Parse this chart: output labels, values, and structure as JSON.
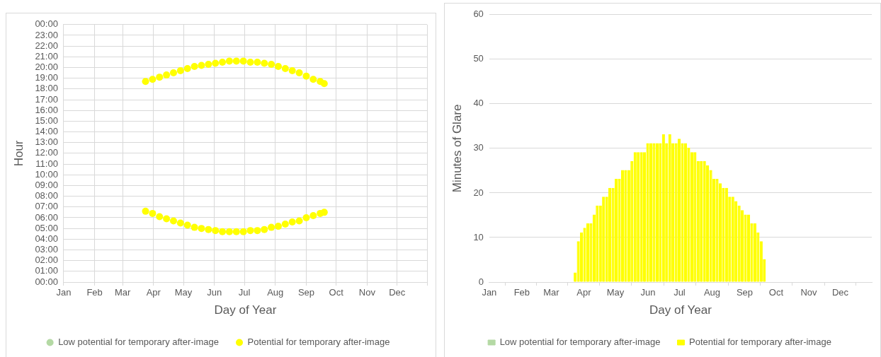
{
  "chart_data": [
    {
      "type": "scatter",
      "xlabel": "Day of Year",
      "ylabel": "Hour",
      "marker": "circle",
      "grid": true,
      "legend": "bottom",
      "xlim": [
        "--01-01",
        "--12-31"
      ],
      "xticks": [
        {
          "value": "--01-01",
          "label": "Jan"
        },
        {
          "value": "--02-01",
          "label": "Feb"
        },
        {
          "value": "--03-01",
          "label": "Mar"
        },
        {
          "value": "--04-01",
          "label": "Apr"
        },
        {
          "value": "--05-01",
          "label": "May"
        },
        {
          "value": "--06-01",
          "label": "Jun"
        },
        {
          "value": "--07-01",
          "label": "Jul"
        },
        {
          "value": "--08-01",
          "label": "Aug"
        },
        {
          "value": "--09-01",
          "label": "Sep"
        },
        {
          "value": "--10-01",
          "label": "Oct"
        },
        {
          "value": "--11-01",
          "label": "Nov"
        },
        {
          "value": "--12-01",
          "label": "Dec"
        },
        {
          "value": "--12-31",
          "label": null
        }
      ],
      "ylim": [
        0,
        24
      ],
      "yticks": [
        {
          "value": 0,
          "label": "00:00"
        },
        {
          "value": 1,
          "label": "01:00"
        },
        {
          "value": 2,
          "label": "02:00"
        },
        {
          "value": 3,
          "label": "03:00"
        },
        {
          "value": 4,
          "label": "04:00"
        },
        {
          "value": 5,
          "label": "05:00"
        },
        {
          "value": 6,
          "label": "06:00"
        },
        {
          "value": 7,
          "label": "07:00"
        },
        {
          "value": 8,
          "label": "08:00"
        },
        {
          "value": 9,
          "label": "09:00"
        },
        {
          "value": 10,
          "label": "10:00"
        },
        {
          "value": 11,
          "label": "11:00"
        },
        {
          "value": 12,
          "label": "12:00"
        },
        {
          "value": 13,
          "label": "13:00"
        },
        {
          "value": 14,
          "label": "14:00"
        },
        {
          "value": 15,
          "label": "15:00"
        },
        {
          "value": 16,
          "label": "16:00"
        },
        {
          "value": 17,
          "label": "17:00"
        },
        {
          "value": 18,
          "label": "18:00"
        },
        {
          "value": 19,
          "label": "19:00"
        },
        {
          "value": 20,
          "label": "20:00"
        },
        {
          "value": 21,
          "label": "21:00"
        },
        {
          "value": 22,
          "label": "22:00"
        },
        {
          "value": 23,
          "label": "23:00"
        },
        {
          "value": 24,
          "label": "00:00"
        }
      ],
      "series": [
        {
          "name": "Low potential for temporary after-image",
          "color": "#b4d9a4"
        },
        {
          "name": "Potential for temporary after-image",
          "color": "#ffff00",
          "x": [
            "--03-24",
            "--03-31",
            "--04-07",
            "--04-14",
            "--04-21",
            "--04-28",
            "--05-05",
            "--05-12",
            "--05-19",
            "--05-26",
            "--06-02",
            "--06-09",
            "--06-16",
            "--06-23",
            "--06-30",
            "--07-07",
            "--07-14",
            "--07-21",
            "--07-28",
            "--08-04",
            "--08-11",
            "--08-18",
            "--08-25",
            "--09-01",
            "--09-08",
            "--09-15",
            "--09-19",
            "--03-24",
            "--03-31",
            "--04-07",
            "--04-14",
            "--04-21",
            "--04-28",
            "--05-05",
            "--05-12",
            "--05-19",
            "--05-26",
            "--06-02",
            "--06-09",
            "--06-16",
            "--06-23",
            "--06-30",
            "--07-07",
            "--07-14",
            "--07-21",
            "--07-28",
            "--08-04",
            "--08-11",
            "--08-18",
            "--08-25",
            "--09-01",
            "--09-08",
            "--09-15",
            "--09-19"
          ],
          "values": [
            6.6,
            6.4,
            6.1,
            5.9,
            5.7,
            5.5,
            5.3,
            5.1,
            5.0,
            4.9,
            4.8,
            4.7,
            4.7,
            4.7,
            4.7,
            4.8,
            4.8,
            4.9,
            5.1,
            5.2,
            5.4,
            5.6,
            5.7,
            6.0,
            6.2,
            6.4,
            6.5,
            18.7,
            18.9,
            19.1,
            19.3,
            19.5,
            19.7,
            19.9,
            20.1,
            20.2,
            20.3,
            20.4,
            20.5,
            20.6,
            20.6,
            20.6,
            20.5,
            20.5,
            20.4,
            20.3,
            20.1,
            19.9,
            19.7,
            19.5,
            19.2,
            18.9,
            18.7,
            18.5
          ]
        }
      ]
    },
    {
      "type": "bar",
      "xlabel": "Day of Year",
      "ylabel": "Minutes of Glare",
      "grid": "y",
      "legend": "bottom",
      "xlim": [
        "--01-01",
        "--12-31"
      ],
      "xticks": [
        {
          "value": "--01-01",
          "label": "Jan"
        },
        {
          "value": "--02-01",
          "label": "Feb"
        },
        {
          "value": "--03-01",
          "label": "Mar"
        },
        {
          "value": "--04-01",
          "label": "Apr"
        },
        {
          "value": "--05-01",
          "label": "May"
        },
        {
          "value": "--06-01",
          "label": "Jun"
        },
        {
          "value": "--07-01",
          "label": "Jul"
        },
        {
          "value": "--08-01",
          "label": "Aug"
        },
        {
          "value": "--09-01",
          "label": "Sep"
        },
        {
          "value": "--10-01",
          "label": "Oct"
        },
        {
          "value": "--11-01",
          "label": "Nov"
        },
        {
          "value": "--12-01",
          "label": "Dec"
        }
      ],
      "ylim": [
        0,
        60
      ],
      "yticks": [
        0,
        10,
        20,
        30,
        40,
        50,
        60
      ],
      "series": [
        {
          "name": "Low potential for temporary after-image",
          "color": "#b4d9a4"
        },
        {
          "name": "Potential for temporary after-image",
          "color": "#ffff00",
          "x": [
            "--03-23",
            "--03-26",
            "--03-29",
            "--04-01",
            "--04-04",
            "--04-07",
            "--04-10",
            "--04-13",
            "--04-16",
            "--04-19",
            "--04-22",
            "--04-25",
            "--04-28",
            "--05-01",
            "--05-04",
            "--05-07",
            "--05-10",
            "--05-13",
            "--05-16",
            "--05-19",
            "--05-22",
            "--05-25",
            "--05-28",
            "--05-31",
            "--06-03",
            "--06-06",
            "--06-09",
            "--06-12",
            "--06-15",
            "--06-18",
            "--06-21",
            "--06-24",
            "--06-27",
            "--06-30",
            "--07-03",
            "--07-06",
            "--07-09",
            "--07-12",
            "--07-15",
            "--07-18",
            "--07-21",
            "--07-24",
            "--07-27",
            "--07-30",
            "--08-02",
            "--08-05",
            "--08-08",
            "--08-11",
            "--08-14",
            "--08-17",
            "--08-20",
            "--08-23",
            "--08-26",
            "--08-29",
            "--09-01",
            "--09-04",
            "--09-07",
            "--09-10",
            "--09-13",
            "--09-16",
            "--09-19"
          ],
          "values": [
            2,
            9,
            11,
            12,
            13,
            13,
            15,
            17,
            17,
            19,
            19,
            21,
            21,
            23,
            23,
            25,
            25,
            25,
            27,
            29,
            29,
            29,
            29,
            31,
            31,
            31,
            31,
            31,
            33,
            31,
            33,
            31,
            31,
            32,
            31,
            31,
            30,
            29,
            29,
            27,
            27,
            27,
            26,
            25,
            23,
            23,
            22,
            21,
            21,
            19,
            19,
            18,
            17,
            16,
            15,
            15,
            13,
            13,
            11,
            9,
            5
          ]
        }
      ]
    }
  ]
}
